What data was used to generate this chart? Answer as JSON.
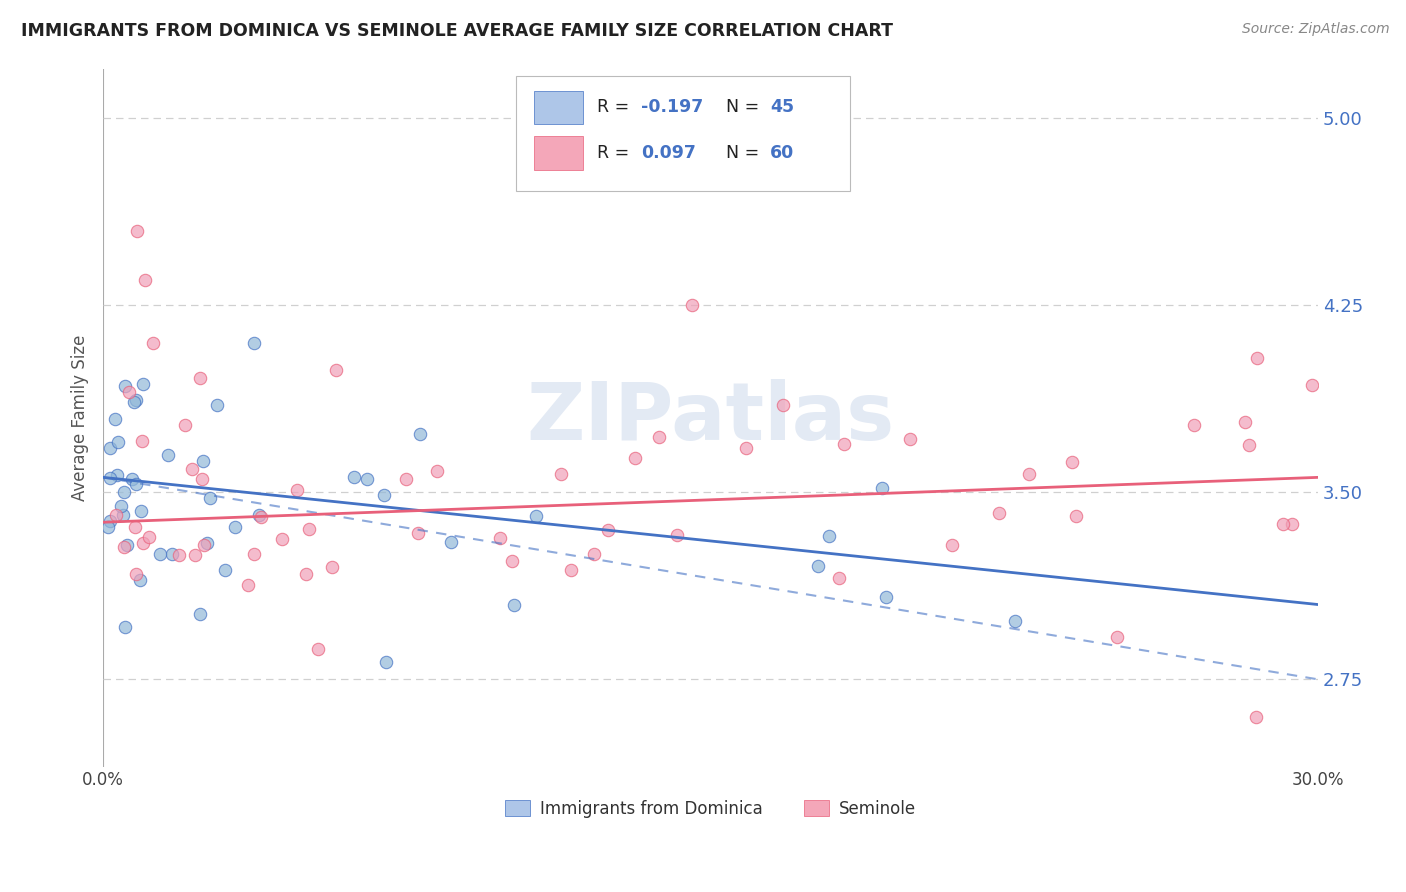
{
  "title": "IMMIGRANTS FROM DOMINICA VS SEMINOLE AVERAGE FAMILY SIZE CORRELATION CHART",
  "source": "Source: ZipAtlas.com",
  "ylabel": "Average Family Size",
  "xmin": 0.0,
  "xmax": 0.3,
  "ymin": 2.4,
  "ymax": 5.2,
  "yticks": [
    2.75,
    3.5,
    4.25,
    5.0
  ],
  "xtick_labels": [
    "0.0%",
    "30.0%"
  ],
  "legend_entries": [
    {
      "label": "Immigrants from Dominica",
      "color": "#aec6e8",
      "R": -0.197,
      "N": 45
    },
    {
      "label": "Seminole",
      "color": "#f4a7b9",
      "R": 0.097,
      "N": 60
    }
  ],
  "blue_scatter_color": "#92b8d8",
  "pink_scatter_color": "#f0a0b8",
  "blue_line_color": "#4472c4",
  "pink_line_color": "#e8607a",
  "text_color_blue": "#4472c4",
  "grid_color": "#d0d0d0",
  "background_color": "#ffffff",
  "watermark": "ZIPatlas",
  "watermark_color": "#ccd9ec",
  "dom_line_x0": 0.0,
  "dom_line_y0": 3.56,
  "dom_line_x1": 0.3,
  "dom_line_y1": 3.05,
  "sem_line_x0": 0.0,
  "sem_line_y0": 3.38,
  "sem_line_x1": 0.3,
  "sem_line_y1": 3.56
}
